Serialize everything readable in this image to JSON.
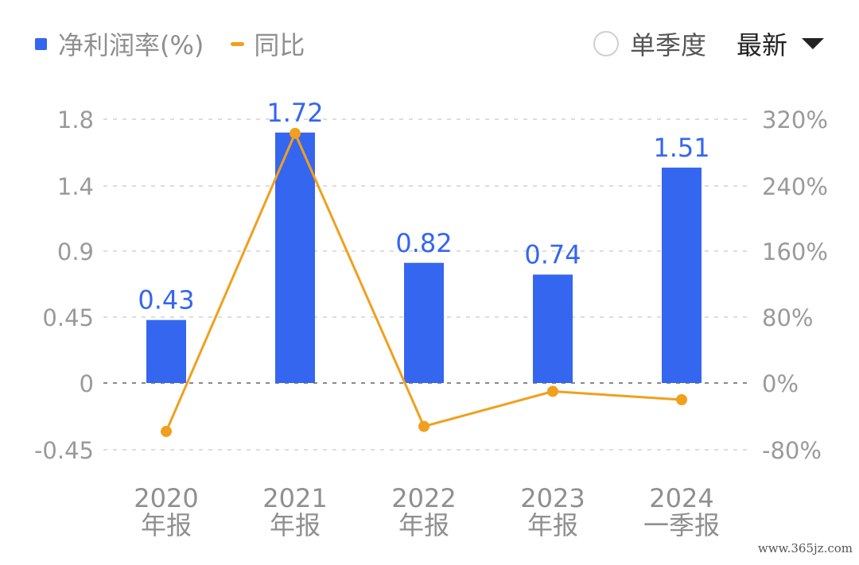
{
  "legend": {
    "bar_label": "净利润率(%)",
    "line_label": "同比"
  },
  "controls": {
    "quarter_label": "单季度",
    "latest_label": "最新"
  },
  "watermark": "www.365jz.com",
  "chart_data": {
    "type": "bar",
    "categories": [
      [
        "2020",
        "年报"
      ],
      [
        "2021",
        "年报"
      ],
      [
        "2022",
        "年报"
      ],
      [
        "2023",
        "年报"
      ],
      [
        "2024",
        "一季报"
      ]
    ],
    "series": [
      {
        "name": "净利润率(%)",
        "type": "bar",
        "axis": "left",
        "values": [
          0.43,
          1.72,
          0.82,
          0.74,
          1.51
        ],
        "color": "#3566f0"
      },
      {
        "name": "同比",
        "type": "line",
        "axis": "right",
        "values": [
          -58,
          303,
          -52,
          -10,
          -20
        ],
        "color": "#f0a01e"
      }
    ],
    "left_axis": {
      "ticks": [
        1.8,
        1.4,
        0.9,
        0.45,
        0,
        -0.45
      ],
      "tick_labels": [
        "1.8",
        "1.4",
        "0.9",
        "0.45",
        "0",
        "-0.45"
      ]
    },
    "right_axis": {
      "ticks": [
        320,
        240,
        160,
        80,
        0,
        -80
      ],
      "tick_labels": [
        "320%",
        "240%",
        "160%",
        "80%",
        "0%",
        "-80%"
      ]
    },
    "bar_labels": [
      "0.43",
      "1.72",
      "0.82",
      "0.74",
      "1.51"
    ],
    "grid": true,
    "legend_position": "top-left"
  }
}
